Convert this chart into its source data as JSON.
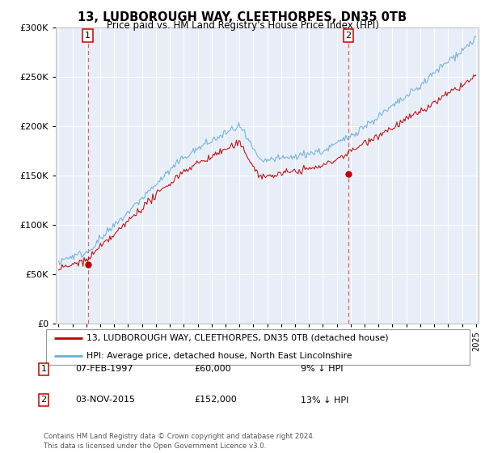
{
  "title": "13, LUDBOROUGH WAY, CLEETHORPES, DN35 0TB",
  "subtitle": "Price paid vs. HM Land Registry's House Price Index (HPI)",
  "sale1_date": "07-FEB-1997",
  "sale1_price": 60000,
  "sale1_label": "9% ↓ HPI",
  "sale1_year": 1997.1,
  "sale2_date": "03-NOV-2015",
  "sale2_price": 152000,
  "sale2_label": "13% ↓ HPI",
  "sale2_year": 2015.84,
  "hpi_color": "#6baed6",
  "price_color": "#c00000",
  "dashed_color": "#e06060",
  "legend_label1": "13, LUDBOROUGH WAY, CLEETHORPES, DN35 0TB (detached house)",
  "legend_label2": "HPI: Average price, detached house, North East Lincolnshire",
  "footer": "Contains HM Land Registry data © Crown copyright and database right 2024.\nThis data is licensed under the Open Government Licence v3.0.",
  "ylim": [
    0,
    300000
  ],
  "yticks": [
    0,
    50000,
    100000,
    150000,
    200000,
    250000,
    300000
  ],
  "xlim_start": 1994.8,
  "xlim_end": 2025.2,
  "background_color": "#ffffff",
  "plot_bg_color": "#e8eef8"
}
